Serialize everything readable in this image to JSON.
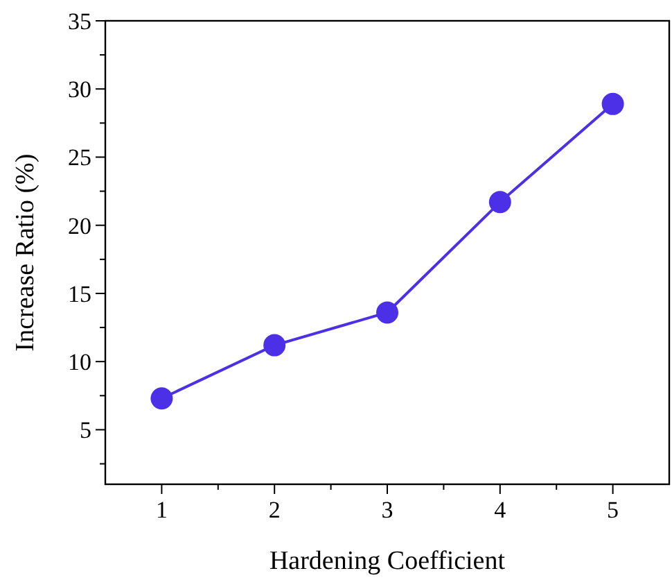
{
  "chart_data": {
    "type": "line",
    "xlabel": "Hardening Coefficient",
    "ylabel": "Increase Ratio (%)",
    "x": [
      1,
      2,
      3,
      4,
      5
    ],
    "series": [
      {
        "color": "#4b30e8",
        "values": [
          7.3,
          11.2,
          13.6,
          21.7,
          28.9
        ]
      }
    ],
    "xlim": [
      0.5,
      5.5
    ],
    "xticks": [
      1,
      {
        "value": 1.5,
        "label": null
      },
      2,
      {
        "value": 2.5,
        "label": null
      },
      3,
      {
        "value": 3.5,
        "label": null
      },
      4,
      {
        "value": 4.5,
        "label": null
      },
      5
    ],
    "ylim": [
      1,
      35
    ],
    "yticks": [
      {
        "value": 2.5,
        "label": null
      },
      5,
      {
        "value": 7.5,
        "label": null
      },
      10,
      {
        "value": 12.5,
        "label": null
      },
      15,
      {
        "value": 17.5,
        "label": null
      },
      20,
      {
        "value": 22.5,
        "label": null
      },
      25,
      {
        "value": 27.5,
        "label": null
      },
      30,
      {
        "value": 32.5,
        "label": null
      },
      35
    ],
    "marker": "circle",
    "line_style": "solid",
    "grid": false
  }
}
